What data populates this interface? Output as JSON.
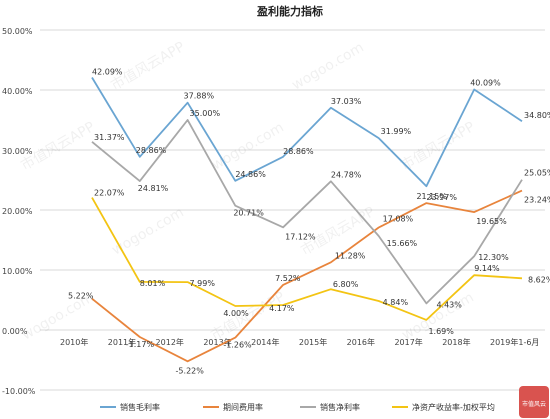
{
  "chart_data": {
    "type": "line",
    "title": "盈利能力指标",
    "categories": [
      "2010年",
      "2011年",
      "2012年",
      "2013年",
      "2014年",
      "2015年",
      "2016年",
      "2017年",
      "2018年",
      "2019年1-6月"
    ],
    "ylim": [
      -10,
      50
    ],
    "yticks": [
      "-10.00%",
      "0.00%",
      "10.00%",
      "20.00%",
      "30.00%",
      "40.00%",
      "50.00%"
    ],
    "grid": true,
    "legend_position": "bottom",
    "series": [
      {
        "name": "销售毛利率",
        "color": "#6aa5d2",
        "values": [
          42.09,
          28.86,
          37.88,
          24.86,
          28.86,
          37.03,
          31.99,
          23.97,
          40.09,
          34.8
        ],
        "labels": [
          "42.09%",
          "28.86%",
          "37.88%",
          "24.86%",
          "28.86%",
          "37.03%",
          "31.99%",
          "23.97%",
          "40.09%",
          "34.80%"
        ]
      },
      {
        "name": "期间费用率",
        "color": "#e8843c",
        "values": [
          5.22,
          -1.17,
          -5.22,
          -1.26,
          7.52,
          11.28,
          17.08,
          21.15,
          19.65,
          23.24
        ],
        "labels": [
          "5.22%",
          "-1.17%",
          "-5.22%",
          "-1.26%",
          "7.52%",
          "11.28%",
          "17.08%",
          "21.15%",
          "19.65%",
          "23.24%"
        ]
      },
      {
        "name": "销售净利率",
        "color": "#a8a8a8",
        "values": [
          31.37,
          24.81,
          35.0,
          20.71,
          17.12,
          24.78,
          15.66,
          4.43,
          12.3,
          25.05
        ],
        "labels": [
          "31.37%",
          "24.81%",
          "35.00%",
          "20.71%",
          "17.12%",
          "24.78%",
          "15.66%",
          "4.43%",
          "12.30%",
          "25.05%"
        ]
      },
      {
        "name": "净资产收益率-加权平均",
        "color": "#f3c413",
        "values": [
          22.07,
          8.01,
          7.99,
          4.0,
          4.17,
          6.8,
          4.84,
          1.69,
          9.14,
          8.62
        ],
        "labels": [
          "22.07%",
          "8.01%",
          "7.99%",
          "4.00%",
          "4.17%",
          "6.80%",
          "4.84%",
          "1.69%",
          "9.14%",
          "8.62%"
        ]
      }
    ]
  },
  "watermark": {
    "cn": "市值风云APP",
    "en": "wogoo.com"
  },
  "corner_logo": {
    "text": "市值风云"
  }
}
